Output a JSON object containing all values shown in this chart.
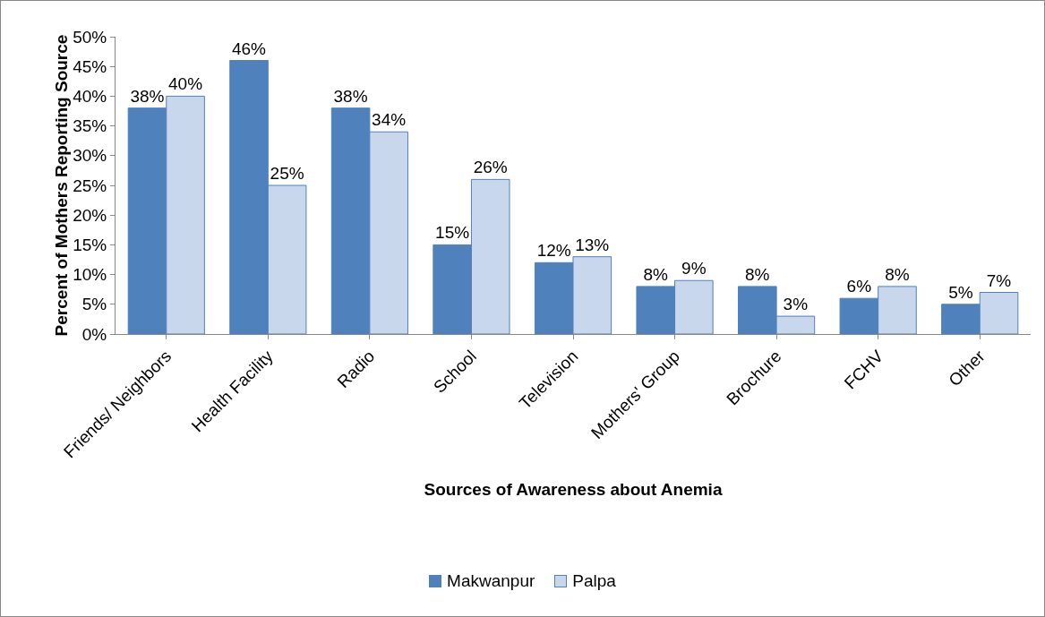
{
  "chart_data": {
    "type": "bar",
    "xlabel": "Sources of Awareness about Anemia",
    "ylabel": "Percent of Mothers Reporting Source",
    "categories": [
      "Friends/ Neighbors",
      "Health Facility",
      "Radio",
      "School",
      "Television",
      "Mothers' Group",
      "Brochure",
      "FCHV",
      "Other"
    ],
    "series": [
      {
        "name": "Makwanpur",
        "color": "#4f81bd",
        "values": [
          38,
          46,
          38,
          15,
          12,
          8,
          8,
          6,
          5
        ],
        "value_labels": [
          "38%",
          "46%",
          "38%",
          "15%",
          "12%",
          "8%",
          "8%",
          "6%",
          "5%"
        ]
      },
      {
        "name": "Palpa",
        "color": "#c9d7ec",
        "values": [
          40,
          25,
          34,
          26,
          13,
          9,
          3,
          8,
          7
        ],
        "value_labels": [
          "40%",
          "25%",
          "34%",
          "26%",
          "13%",
          "9%",
          "3%",
          "8%",
          "7%"
        ]
      }
    ],
    "ylim": [
      0,
      50
    ],
    "yticks": [
      {
        "value": 0,
        "label": "0%"
      },
      {
        "value": 5,
        "label": "5%"
      },
      {
        "value": 10,
        "label": "10%"
      },
      {
        "value": 15,
        "label": "15%"
      },
      {
        "value": 20,
        "label": "20%"
      },
      {
        "value": 25,
        "label": "25%"
      },
      {
        "value": 30,
        "label": "30%"
      },
      {
        "value": 35,
        "label": "35%"
      },
      {
        "value": 40,
        "label": "40%"
      },
      {
        "value": 45,
        "label": "45%"
      },
      {
        "value": 50,
        "label": "50%"
      }
    ],
    "grid": false,
    "legend": "bottom"
  }
}
